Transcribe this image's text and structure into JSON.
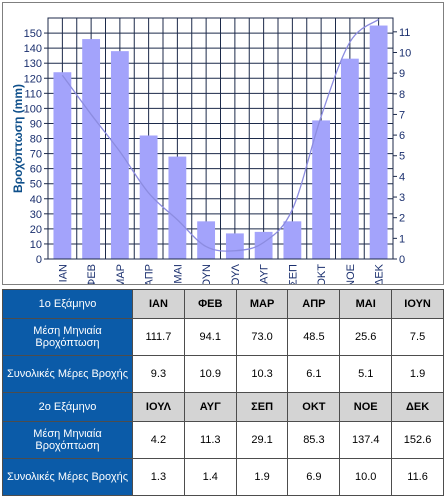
{
  "chart_data": {
    "type": "bar+line",
    "categories": [
      "ΙΑΝ",
      "ΦΕΒ",
      "ΜΑΡ",
      "ΑΠΡ",
      "ΜΑΙ",
      "ΙΟΥΝ",
      "ΙΟΥΛ",
      "ΑΥΓ",
      "ΣΕΠ",
      "ΟΚΤ",
      "ΝΟΕ",
      "ΔΕΚ"
    ],
    "bar_values": [
      124,
      146,
      138,
      82,
      68,
      25,
      17,
      18,
      25,
      92,
      133,
      155
    ],
    "line_values": [
      8.9,
      7.0,
      5.2,
      3.2,
      1.9,
      0.6,
      0.4,
      0.8,
      2.4,
      6.9,
      10.5,
      11.6
    ],
    "ylabel": "Βροχόπτωση   (mm)",
    "ylim": [
      0,
      160
    ],
    "y_ticks": [
      0,
      10,
      20,
      30,
      40,
      50,
      60,
      70,
      80,
      90,
      100,
      110,
      120,
      130,
      140,
      150
    ],
    "y2lim": [
      0,
      11.67
    ],
    "y2_ticks": [
      0,
      1,
      2,
      3,
      4,
      5,
      6,
      7,
      8,
      9,
      10,
      11
    ],
    "grid": true,
    "colors": {
      "bar": "#a3a3fb",
      "line": "#8c8ce0",
      "grid": "#1c2a4a",
      "axis_text": "#1a2f6e",
      "ylabel": "#0e4f8a"
    }
  },
  "table": {
    "rows": [
      {
        "label": "1ο Εξάμηνο",
        "cells": [
          "ΙΑΝ",
          "ΦΕΒ",
          "ΜΑΡ",
          "ΑΠΡ",
          "ΜΑΙ",
          "ΙΟΥΝ"
        ]
      },
      {
        "label": "Μέση Μηνιαία Βροχόπτωση",
        "cells": [
          "111.7",
          "94.1",
          "73.0",
          "48.5",
          "25.6",
          "7.5"
        ]
      },
      {
        "label": "Συνολικές Μέρες Βροχής",
        "cells": [
          "9.3",
          "10.9",
          "10.3",
          "6.1",
          "5.1",
          "1.9"
        ]
      },
      {
        "label": "2ο Εξάμηνο",
        "cells": [
          "ΙΟΥΛ",
          "ΑΥΓ",
          "ΣΕΠ",
          "ΟΚΤ",
          "ΝΟΕ",
          "ΔΕΚ"
        ]
      },
      {
        "label": "Μέση Μηνιαία Βροχόπτωση",
        "cells": [
          "4.2",
          "11.3",
          "29.1",
          "85.3",
          "137.4",
          "152.6"
        ]
      },
      {
        "label": "Συνολικές Μέρες Βροχής",
        "cells": [
          "1.3",
          "1.4",
          "1.9",
          "6.9",
          "10.0",
          "11.6"
        ]
      }
    ]
  }
}
